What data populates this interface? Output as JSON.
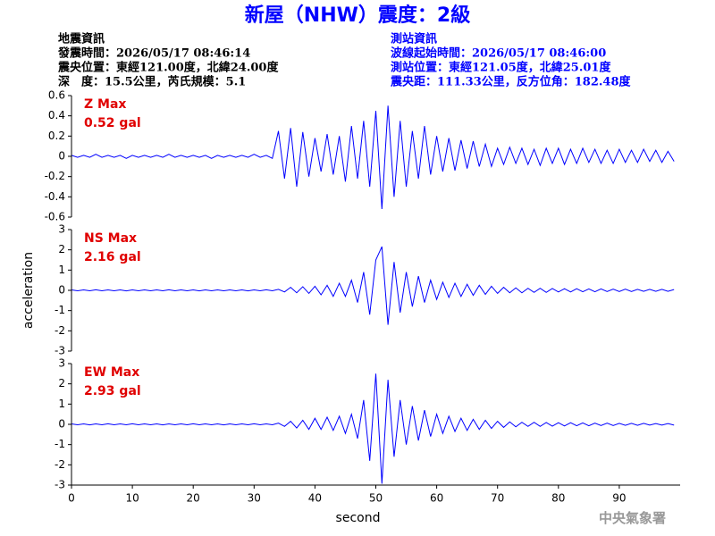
{
  "header": {
    "title": "新屋（NHW）震度：2級",
    "left": [
      "地震資訊",
      "發震時間：2026/05/17 08:46:14",
      "震央位置：東經121.00度，北緯24.00度",
      "深　度：15.5公里，芮氏規模：5.1"
    ],
    "right": [
      "測站資訊",
      "波線起始時間：2026/05/17 08:46:00",
      "測站位置：東經121.05度，北緯25.01度",
      "震央距：111.33公里，反方位角：182.48度"
    ]
  },
  "chart_data": [
    {
      "type": "line",
      "label": "Z Max",
      "max_label": "0.52 gal",
      "color": "#0000ff",
      "x": [
        0,
        1,
        2,
        3,
        4,
        5,
        6,
        7,
        8,
        9,
        10,
        11,
        12,
        13,
        14,
        15,
        16,
        17,
        18,
        19,
        20,
        21,
        22,
        23,
        24,
        25,
        26,
        27,
        28,
        29,
        30,
        31,
        32,
        33,
        34,
        35,
        36,
        37,
        38,
        39,
        40,
        41,
        42,
        43,
        44,
        45,
        46,
        47,
        48,
        49,
        50,
        51,
        52,
        53,
        54,
        55,
        56,
        57,
        58,
        59,
        60,
        61,
        62,
        63,
        64,
        65,
        66,
        67,
        68,
        69,
        70,
        71,
        72,
        73,
        74,
        75,
        76,
        77,
        78,
        79,
        80,
        81,
        82,
        83,
        84,
        85,
        86,
        87,
        88,
        89,
        90,
        91,
        92,
        93,
        94,
        95,
        96,
        97,
        98,
        99
      ],
      "values": [
        0.01,
        -0.01,
        0.01,
        -0.01,
        0.02,
        -0.01,
        0.01,
        -0.01,
        0.01,
        -0.02,
        0.01,
        -0.01,
        0.01,
        -0.01,
        0.01,
        -0.01,
        0.02,
        -0.01,
        0.01,
        -0.01,
        0.01,
        -0.01,
        0.01,
        -0.02,
        0.01,
        -0.01,
        0.01,
        -0.01,
        0.01,
        -0.01,
        0.02,
        -0.01,
        0.01,
        -0.02,
        0.25,
        -0.22,
        0.28,
        -0.3,
        0.24,
        -0.2,
        0.18,
        -0.15,
        0.22,
        -0.18,
        0.2,
        -0.25,
        0.3,
        -0.22,
        0.35,
        -0.3,
        0.45,
        -0.52,
        0.5,
        -0.4,
        0.35,
        -0.3,
        0.25,
        -0.22,
        0.3,
        -0.18,
        0.2,
        -0.15,
        0.18,
        -0.14,
        0.16,
        -0.12,
        0.15,
        -0.1,
        0.12,
        -0.1,
        0.08,
        -0.08,
        0.09,
        -0.07,
        0.08,
        -0.08,
        0.07,
        -0.09,
        0.08,
        -0.07,
        0.08,
        -0.08,
        0.07,
        -0.07,
        0.08,
        -0.06,
        0.07,
        -0.07,
        0.06,
        -0.07,
        0.07,
        -0.06,
        0.06,
        -0.06,
        0.07,
        -0.05,
        0.06,
        -0.06,
        0.05,
        -0.05
      ],
      "ylim": [
        -0.6,
        0.6
      ],
      "yticks": [
        -0.6,
        -0.4,
        -0.2,
        0,
        0.2,
        0.4,
        0.6
      ]
    },
    {
      "type": "line",
      "label": "NS Max",
      "max_label": "2.16 gal",
      "color": "#0000ff",
      "ylabel": "acceleration",
      "x": [
        0,
        1,
        2,
        3,
        4,
        5,
        6,
        7,
        8,
        9,
        10,
        11,
        12,
        13,
        14,
        15,
        16,
        17,
        18,
        19,
        20,
        21,
        22,
        23,
        24,
        25,
        26,
        27,
        28,
        29,
        30,
        31,
        32,
        33,
        34,
        35,
        36,
        37,
        38,
        39,
        40,
        41,
        42,
        43,
        44,
        45,
        46,
        47,
        48,
        49,
        50,
        51,
        52,
        53,
        54,
        55,
        56,
        57,
        58,
        59,
        60,
        61,
        62,
        63,
        64,
        65,
        66,
        67,
        68,
        69,
        70,
        71,
        72,
        73,
        74,
        75,
        76,
        77,
        78,
        79,
        80,
        81,
        82,
        83,
        84,
        85,
        86,
        87,
        88,
        89,
        90,
        91,
        92,
        93,
        94,
        95,
        96,
        97,
        98,
        99
      ],
      "values": [
        0.02,
        -0.02,
        0.02,
        -0.02,
        0.03,
        -0.02,
        0.02,
        -0.02,
        0.02,
        -0.03,
        0.02,
        -0.02,
        0.02,
        -0.02,
        0.02,
        -0.02,
        0.03,
        -0.02,
        0.02,
        -0.02,
        0.02,
        -0.03,
        0.02,
        -0.02,
        0.02,
        -0.02,
        0.02,
        -0.02,
        0.02,
        -0.03,
        0.02,
        -0.02,
        0.03,
        -0.02,
        0.05,
        -0.08,
        0.15,
        -0.12,
        0.18,
        -0.15,
        0.2,
        -0.22,
        0.25,
        -0.3,
        0.35,
        -0.3,
        0.5,
        -0.6,
        0.9,
        -1.2,
        1.5,
        2.16,
        -1.7,
        1.4,
        -1.1,
        0.9,
        -0.8,
        0.7,
        -0.6,
        0.5,
        -0.45,
        0.4,
        -0.35,
        0.35,
        -0.3,
        0.3,
        -0.25,
        0.25,
        -0.2,
        0.2,
        -0.15,
        0.15,
        -0.12,
        0.12,
        -0.12,
        0.1,
        -0.1,
        0.1,
        -0.1,
        0.09,
        -0.08,
        0.08,
        -0.08,
        0.08,
        -0.07,
        0.07,
        -0.07,
        0.07,
        -0.06,
        0.06,
        -0.06,
        0.06,
        -0.06,
        0.05,
        -0.05,
        0.05,
        -0.05,
        0.05,
        -0.05,
        0.04
      ],
      "ylim": [
        -3,
        3
      ],
      "yticks": [
        -3,
        -2,
        -1,
        0,
        1,
        2,
        3
      ]
    },
    {
      "type": "line",
      "label": "EW Max",
      "max_label": "2.93 gal",
      "color": "#0000ff",
      "xlabel": "second",
      "x": [
        0,
        1,
        2,
        3,
        4,
        5,
        6,
        7,
        8,
        9,
        10,
        11,
        12,
        13,
        14,
        15,
        16,
        17,
        18,
        19,
        20,
        21,
        22,
        23,
        24,
        25,
        26,
        27,
        28,
        29,
        30,
        31,
        32,
        33,
        34,
        35,
        36,
        37,
        38,
        39,
        40,
        41,
        42,
        43,
        44,
        45,
        46,
        47,
        48,
        49,
        50,
        51,
        52,
        53,
        54,
        55,
        56,
        57,
        58,
        59,
        60,
        61,
        62,
        63,
        64,
        65,
        66,
        67,
        68,
        69,
        70,
        71,
        72,
        73,
        74,
        75,
        76,
        77,
        78,
        79,
        80,
        81,
        82,
        83,
        84,
        85,
        86,
        87,
        88,
        89,
        90,
        91,
        92,
        93,
        94,
        95,
        96,
        97,
        98,
        99
      ],
      "values": [
        0.02,
        -0.02,
        0.02,
        -0.03,
        0.02,
        -0.02,
        0.03,
        -0.02,
        0.02,
        -0.02,
        0.03,
        -0.02,
        0.02,
        -0.02,
        0.02,
        -0.03,
        0.02,
        -0.02,
        0.02,
        -0.02,
        0.03,
        -0.02,
        0.02,
        -0.02,
        0.02,
        -0.03,
        0.02,
        -0.02,
        0.02,
        -0.02,
        0.03,
        -0.02,
        0.02,
        -0.02,
        0.06,
        -0.1,
        0.15,
        -0.18,
        0.2,
        -0.25,
        0.3,
        -0.25,
        0.35,
        -0.3,
        0.4,
        -0.45,
        0.5,
        -0.7,
        1.2,
        -1.8,
        2.5,
        -2.93,
        2.2,
        -1.6,
        1.2,
        -1.0,
        0.9,
        -0.8,
        0.7,
        -0.6,
        0.5,
        -0.45,
        0.4,
        -0.35,
        0.3,
        -0.3,
        0.25,
        -0.25,
        0.2,
        -0.2,
        0.15,
        -0.15,
        0.12,
        -0.12,
        0.1,
        -0.1,
        0.1,
        -0.1,
        0.09,
        -0.09,
        0.08,
        -0.08,
        0.08,
        -0.07,
        0.07,
        -0.07,
        0.06,
        -0.06,
        0.06,
        -0.06,
        0.05,
        -0.05,
        0.05,
        -0.05,
        0.05,
        -0.04,
        0.04,
        -0.04,
        0.04,
        -0.04
      ],
      "ylim": [
        -3,
        3
      ],
      "yticks": [
        -3,
        -2,
        -1,
        0,
        1,
        2,
        3
      ],
      "xlim": [
        0,
        100
      ],
      "xticks": [
        0,
        10,
        20,
        30,
        40,
        50,
        60,
        70,
        80,
        90
      ]
    }
  ],
  "footer": "中央氣象署"
}
